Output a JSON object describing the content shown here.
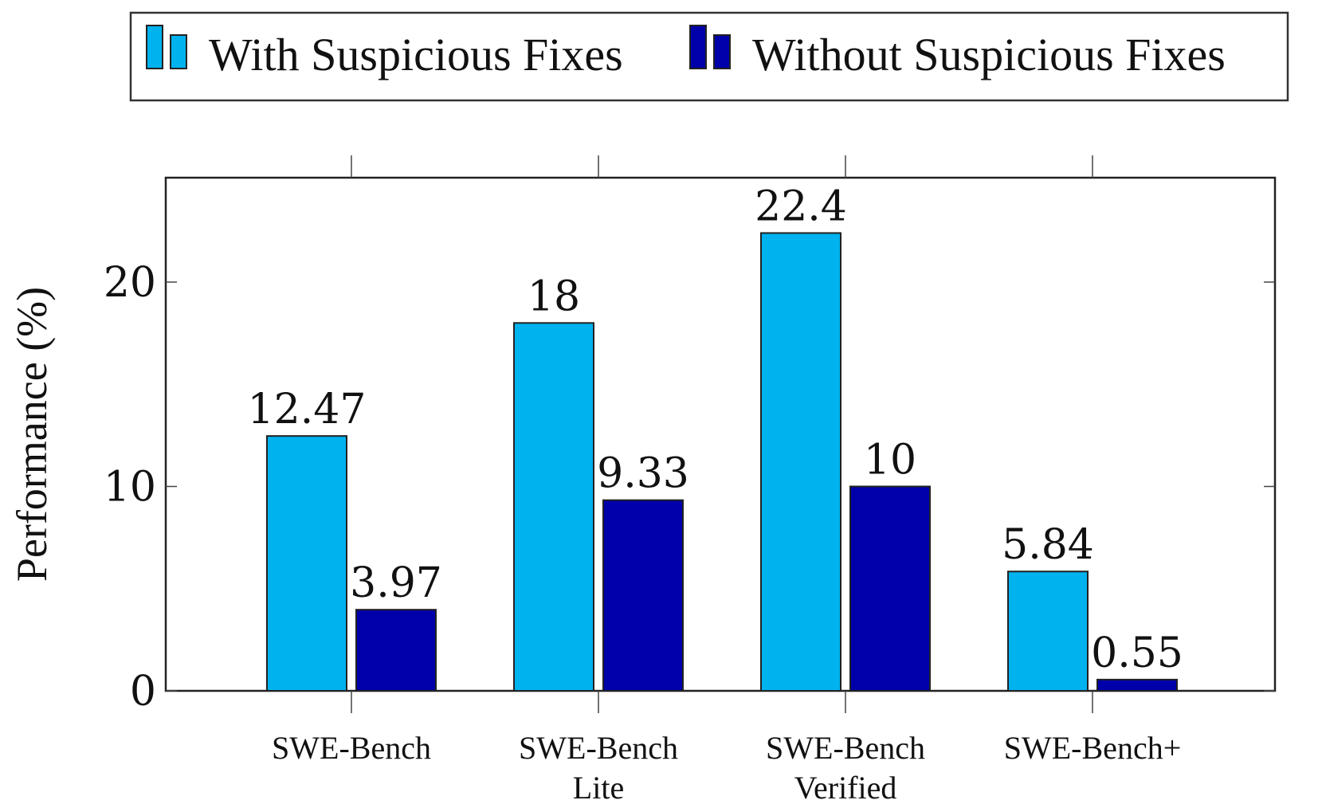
{
  "chart_data": {
    "type": "bar",
    "categories": [
      [
        "SWE-Bench"
      ],
      [
        "SWE-Bench",
        "Lite"
      ],
      [
        "SWE-Bench",
        "Verified"
      ],
      [
        "SWE-Bench+"
      ]
    ],
    "series": [
      {
        "name": "With Suspicious Fixes",
        "color": "#00b2ee",
        "values": [
          12.47,
          18,
          22.4,
          5.84
        ],
        "labels": [
          "12.47",
          "18",
          "22.4",
          "5.84"
        ]
      },
      {
        "name": "Without Suspicious Fixes",
        "color": "#0000aa",
        "values": [
          3.97,
          9.33,
          10,
          0.55
        ],
        "labels": [
          "3.97",
          "9.33",
          "10",
          "0.55"
        ]
      }
    ],
    "ylabel": "Performance (%)",
    "xlabel": "",
    "ylim": [
      0,
      25
    ],
    "yticks": [
      0,
      10,
      20
    ],
    "grid": false,
    "legend_position": "top"
  }
}
